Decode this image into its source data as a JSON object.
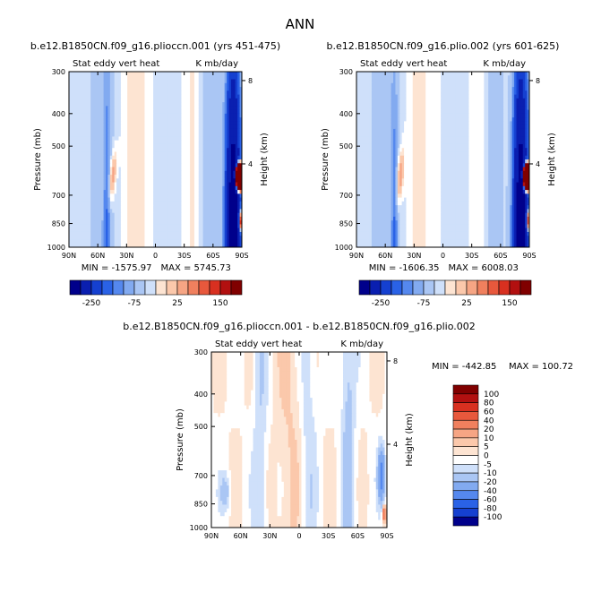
{
  "figure": {
    "title": "ANN"
  },
  "chart_data": [
    {
      "type": "heatmap",
      "title": "b.e12.B1850CN.f09_g16.plioccn.001 (yrs 451-475)",
      "variable": "Stat eddy vert heat",
      "units": "K mb/day",
      "ylabel": "Pressure (mb)",
      "y2label": "Height (km)",
      "x_ticks": [
        "90N",
        "60N",
        "30N",
        "0",
        "30S",
        "60S",
        "90S"
      ],
      "y_ticks": [
        "300",
        "400",
        "500",
        "700",
        "850",
        "1000"
      ],
      "y2_ticks": [
        "8",
        "4"
      ],
      "ylim": [
        1000,
        300
      ],
      "min_label": "MIN = -1575.97",
      "max_label": "MAX = 5745.73",
      "min": -1575.97,
      "max": 5745.73,
      "colorbar_labels": [
        "-250",
        "-75",
        "25",
        "150"
      ]
    },
    {
      "type": "heatmap",
      "title": "b.e12.B1850CN.f09_g16.plio.002 (yrs 601-625)",
      "variable": "Stat eddy vert heat",
      "units": "K mb/day",
      "ylabel": "Pressure (mb)",
      "y2label": "Height (km)",
      "x_ticks": [
        "90N",
        "60N",
        "30N",
        "0",
        "30S",
        "60S",
        "90S"
      ],
      "y_ticks": [
        "300",
        "400",
        "500",
        "700",
        "850",
        "1000"
      ],
      "y2_ticks": [
        "8",
        "4"
      ],
      "ylim": [
        1000,
        300
      ],
      "min_label": "MIN = -1606.35",
      "max_label": "MAX = 6008.03",
      "min": -1606.35,
      "max": 6008.03,
      "colorbar_labels": [
        "-250",
        "-75",
        "25",
        "150"
      ]
    },
    {
      "type": "heatmap",
      "title": "b.e12.B1850CN.f09_g16.plioccn.001 - b.e12.B1850CN.f09_g16.plio.002",
      "variable": "Stat eddy vert heat",
      "units": "K mb/day",
      "ylabel": "Pressure (mb)",
      "y2label": "Height (km)",
      "x_ticks": [
        "90N",
        "60N",
        "30N",
        "0",
        "30S",
        "60S",
        "90S"
      ],
      "y_ticks": [
        "300",
        "400",
        "500",
        "700",
        "850",
        "1000"
      ],
      "y2_ticks": [
        "8",
        "4"
      ],
      "ylim": [
        1000,
        300
      ],
      "min_label": "MIN = -442.85",
      "max_label": "MAX = 100.72",
      "min": -442.85,
      "max": 100.72,
      "colorbar_labels": [
        "100",
        "80",
        "60",
        "40",
        "20",
        "10",
        "5",
        "0",
        "-5",
        "-10",
        "-20",
        "-40",
        "-60",
        "-80",
        "-100"
      ]
    }
  ],
  "colors": {
    "scale": [
      "#00008b",
      "#0a1fb0",
      "#1540d0",
      "#2a62e6",
      "#5588ee",
      "#82aaf0",
      "#aac6f4",
      "#cfe0fa",
      "#ffffff",
      "#fde4d2",
      "#fbc8ab",
      "#f6a584",
      "#f0805e",
      "#e8583c",
      "#d83020",
      "#b21010",
      "#800000"
    ],
    "top_colorbar": [
      "#00008b",
      "#0a1fb0",
      "#1540d0",
      "#2a62e6",
      "#5588ee",
      "#82aaf0",
      "#aac6f4",
      "#cfe0fa",
      "#fde4d2",
      "#fbc8ab",
      "#f6a584",
      "#f0805e",
      "#e8583c",
      "#d83020",
      "#b21010",
      "#800000"
    ],
    "diff_colorbar": [
      "#800000",
      "#b21010",
      "#d83020",
      "#e8583c",
      "#f0805e",
      "#f6a584",
      "#fbc8ab",
      "#fde4d2",
      "#ffffff",
      "#cfe0fa",
      "#aac6f4",
      "#82aaf0",
      "#5588ee",
      "#2a62e6",
      "#1540d0",
      "#00008b"
    ]
  }
}
